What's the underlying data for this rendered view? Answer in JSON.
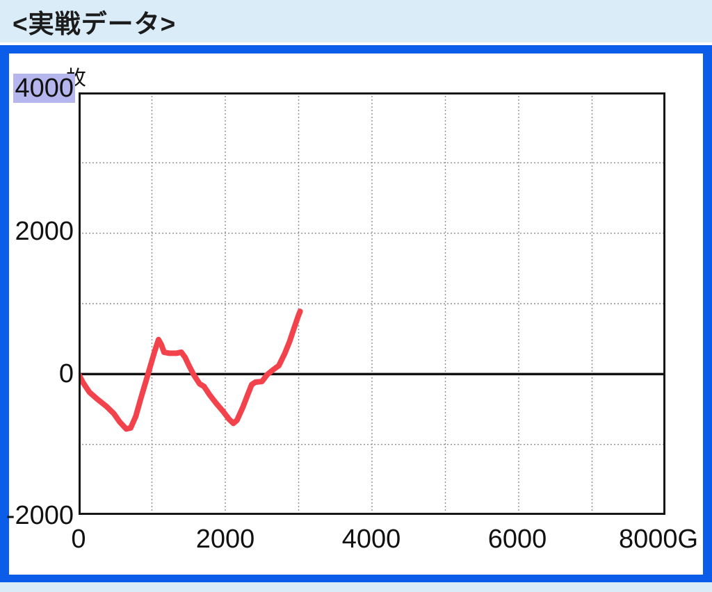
{
  "header": {
    "title": "<実戦データ>"
  },
  "chart": {
    "unit_label": "枚",
    "y_axis": {
      "labels": [
        "4000",
        "2000",
        "0",
        "-2000"
      ],
      "highlighted_label": "4000"
    },
    "x_axis": {
      "labels": [
        "0",
        "2000",
        "4000",
        "6000",
        "8000G"
      ]
    },
    "colors": {
      "frame_blue": "#0b5ce8",
      "header_bg": "#d9ecf8",
      "line_red": "#f2424c",
      "highlight_lavender": "#b6b6ef",
      "grid_gray": "#8e8e8e",
      "text": "#111111"
    }
  },
  "chart_data": {
    "type": "line",
    "title": "<実戦データ>",
    "xlabel": "G (games)",
    "ylabel": "枚 (medals)",
    "xlim": [
      0,
      8000
    ],
    "ylim": [
      -2000,
      4000
    ],
    "x_ticks": [
      0,
      2000,
      4000,
      6000,
      8000
    ],
    "y_ticks": [
      -2000,
      0,
      2000,
      4000
    ],
    "grid": "dotted gridlines every 1000 units both axes; solid black zero baseline",
    "legend_position": "none",
    "v_gridlines": [
      1000,
      2000,
      3000,
      4000,
      5000,
      6000,
      7000
    ],
    "h_gridlines": [
      3000,
      2000,
      1000,
      -1000
    ],
    "zero_baseline": 0,
    "series": [
      {
        "name": "実戦データ (medal differential)",
        "points": [
          [
            0,
            0
          ],
          [
            60,
            -120
          ],
          [
            150,
            -260
          ],
          [
            260,
            -360
          ],
          [
            380,
            -460
          ],
          [
            480,
            -560
          ],
          [
            560,
            -680
          ],
          [
            650,
            -780
          ],
          [
            710,
            -765
          ],
          [
            780,
            -600
          ],
          [
            850,
            -340
          ],
          [
            930,
            -60
          ],
          [
            980,
            120
          ],
          [
            1040,
            330
          ],
          [
            1090,
            490
          ],
          [
            1130,
            415
          ],
          [
            1165,
            310
          ],
          [
            1240,
            295
          ],
          [
            1330,
            295
          ],
          [
            1400,
            310
          ],
          [
            1450,
            240
          ],
          [
            1510,
            110
          ],
          [
            1570,
            -10
          ],
          [
            1650,
            -140
          ],
          [
            1710,
            -175
          ],
          [
            1790,
            -300
          ],
          [
            1880,
            -420
          ],
          [
            1970,
            -530
          ],
          [
            2050,
            -640
          ],
          [
            2110,
            -700
          ],
          [
            2160,
            -655
          ],
          [
            2240,
            -470
          ],
          [
            2300,
            -310
          ],
          [
            2360,
            -150
          ],
          [
            2410,
            -115
          ],
          [
            2500,
            -105
          ],
          [
            2570,
            -10
          ],
          [
            2650,
            60
          ],
          [
            2730,
            120
          ],
          [
            2810,
            290
          ],
          [
            2880,
            470
          ],
          [
            2940,
            660
          ],
          [
            2990,
            810
          ],
          [
            3020,
            890
          ]
        ]
      }
    ]
  }
}
